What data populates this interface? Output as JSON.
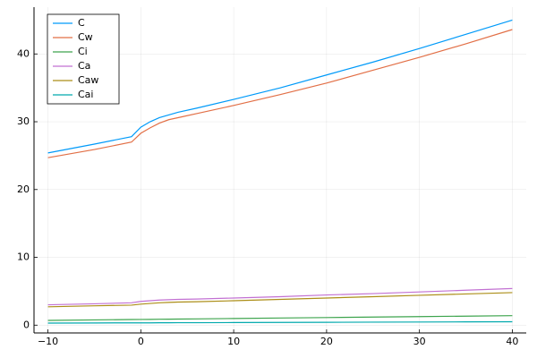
{
  "chart_data": {
    "type": "line",
    "x": [
      -10,
      -5,
      -1,
      0,
      1,
      2,
      3,
      4,
      6,
      10,
      15,
      20,
      25,
      30,
      35,
      40
    ],
    "series": [
      {
        "name": "C",
        "color": "#009af9",
        "values": [
          25.4,
          26.7,
          27.8,
          29.2,
          30.0,
          30.6,
          31.0,
          31.4,
          32.0,
          33.3,
          35.0,
          36.9,
          38.8,
          40.8,
          42.9,
          45.0
        ]
      },
      {
        "name": "Cw",
        "color": "#e26f46",
        "values": [
          24.7,
          25.9,
          27.0,
          28.3,
          29.1,
          29.8,
          30.3,
          30.6,
          31.2,
          32.4,
          34.0,
          35.7,
          37.6,
          39.5,
          41.5,
          43.6
        ]
      },
      {
        "name": "Ci",
        "color": "#3da44d",
        "values": [
          0.7,
          0.77,
          0.83,
          0.84,
          0.85,
          0.87,
          0.88,
          0.9,
          0.92,
          0.98,
          1.05,
          1.12,
          1.19,
          1.26,
          1.33,
          1.4
        ]
      },
      {
        "name": "Ca",
        "color": "#c271d2",
        "values": [
          3.0,
          3.15,
          3.3,
          3.5,
          3.6,
          3.7,
          3.75,
          3.8,
          3.85,
          4.0,
          4.2,
          4.45,
          4.65,
          4.9,
          5.15,
          5.4
        ]
      },
      {
        "name": "Caw",
        "color": "#ac8e18",
        "values": [
          2.7,
          2.85,
          2.95,
          3.1,
          3.2,
          3.3,
          3.35,
          3.4,
          3.45,
          3.6,
          3.8,
          4.0,
          4.2,
          4.4,
          4.6,
          4.8
        ]
      },
      {
        "name": "Cai",
        "color": "#00a9ad",
        "values": [
          0.3,
          0.32,
          0.34,
          0.34,
          0.34,
          0.35,
          0.35,
          0.36,
          0.36,
          0.38,
          0.4,
          0.42,
          0.44,
          0.46,
          0.48,
          0.5
        ]
      }
    ],
    "xlim": [
      -11.5,
      41.5
    ],
    "xticks": [
      {
        "value": -10,
        "label": "−10"
      },
      0,
      10,
      20,
      30,
      40
    ],
    "ylim": [
      -1.15,
      46.9
    ],
    "yticks": [
      0,
      10,
      20,
      30,
      40
    ],
    "grid": true,
    "legend": "top-left"
  }
}
